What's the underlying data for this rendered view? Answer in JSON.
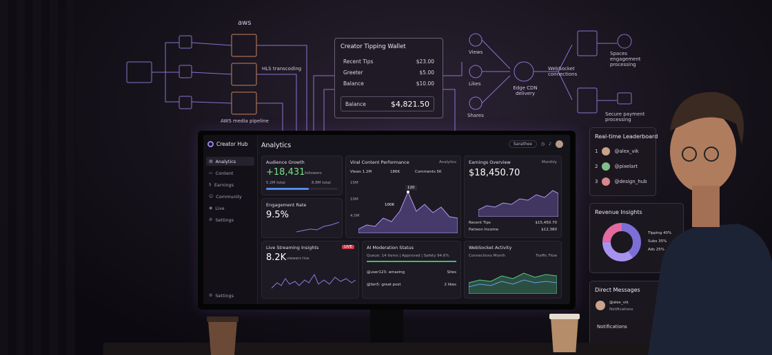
{
  "diagram": {
    "aws_label": "aws",
    "hls_label": "HLS transcoding",
    "pipeline_label": "AWS media pipeline",
    "views_label": "Views",
    "likes_label": "Likes",
    "shares_label": "Shares",
    "edge_label": "Edge CDN delivery",
    "websocket_label": "WebSocket connections",
    "spaces_label": "Spaces engagement processing",
    "secure_label": "Secure payment processing"
  },
  "wallet": {
    "title": "Creator Tipping Wallet",
    "rows": [
      {
        "label": "Recent Tips",
        "value": "$23.00"
      },
      {
        "label": "Greeter",
        "value": "$5.00"
      },
      {
        "label": "Balance",
        "value": "$10.00"
      }
    ],
    "balance_label": "Balance",
    "balance_value": "$4,821.50"
  },
  "app": {
    "logo": "Creator Hub",
    "title": "Analytics",
    "header_pill": "Sarathee",
    "nav": [
      "Analytics",
      "Content",
      "Earnings",
      "Community",
      "Live",
      "Settings"
    ],
    "nav_bottom": "Settings"
  },
  "cards": {
    "audience": {
      "title": "Audience Growth",
      "value": "+18,431",
      "sub": "followers",
      "note": "5.2M total",
      "note2": "8.8M total"
    },
    "engagement": {
      "title": "Engagement Rate",
      "value": "9.5%"
    },
    "viral": {
      "title": "Viral Content Performance",
      "filter": "Analytics",
      "views": "Views 1.2M",
      "likes": "186K",
      "comments": "Comments 5K",
      "peak": "120",
      "mid": "100K",
      "y_ticks": [
        "15M",
        "10M",
        "4.5M"
      ]
    },
    "earnings": {
      "title": "Earnings Overview",
      "filter": "Monthly",
      "value": "$18,450.70",
      "rows": [
        {
          "label": "Recent Tips",
          "value": "$15,450.70"
        },
        {
          "label": "Patreon Income",
          "value": "$12,380"
        }
      ]
    },
    "live": {
      "title": "Live Streaming Insights",
      "badge": "LIVE",
      "value": "8.2K",
      "sub": "viewers live"
    },
    "moderation": {
      "title": "AI Moderation Status",
      "status": "Queue: 14 items | Approved | Safety 94.6%",
      "items": [
        {
          "user": "@user123: amazing",
          "tag": "Sites"
        },
        {
          "user": "@fan5: great post",
          "tag": "2 likes"
        }
      ]
    },
    "websocket": {
      "title": "WebSocket Activity",
      "legend1": "Connections Month",
      "legend2": "Traffic Flow"
    }
  },
  "leaderboard": {
    "title": "Real-time Leaderboard",
    "entries": [
      {
        "rank": "1",
        "name": "@alex_vik"
      },
      {
        "rank": "2",
        "name": "@pixelart"
      },
      {
        "rank": "3",
        "name": "@design_hub"
      }
    ]
  },
  "revenue": {
    "title": "Revenue Insights",
    "legend": [
      "Tipping 40%",
      "Subs 35%",
      "Ads 25%"
    ],
    "colors": [
      "#7b6fd6",
      "#a892f0",
      "#e26aa0"
    ]
  },
  "messages": {
    "title": "Direct Messages",
    "user": "@alex_vik",
    "user_sub": "Notifications",
    "notifications": "Notifications"
  }
}
